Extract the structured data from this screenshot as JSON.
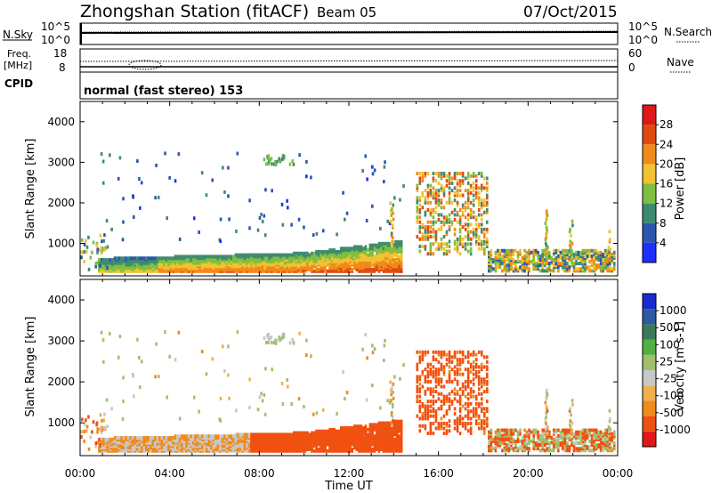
{
  "header": {
    "station": "Zhongshan Station (fitACF)",
    "beam": "Beam 05",
    "date": "07/Oct/2015"
  },
  "strip_labels": {
    "nsky": "N.Sky",
    "nsky_top": "10^5",
    "nsky_bottom": "10^0",
    "nsearch": "N.Search",
    "nsearch_top": "10^5",
    "nsearch_bottom": "10^0",
    "freq_line1": "Freq.",
    "freq_line2": "[MHz]",
    "freq_top": "18",
    "freq_bottom": "8",
    "nave": "Nave",
    "nave_top": "60",
    "nave_bottom": "0",
    "cpid": "CPID",
    "mode": "normal (fast stereo) 153"
  },
  "colors": {
    "power_scale": [
      "#1f2fff",
      "#2a56b0",
      "#3f8a6f",
      "#7fbf3f",
      "#f2c230",
      "#f08a1a",
      "#e04a10",
      "#e01818"
    ],
    "velocity_scale": [
      "#e01818",
      "#f05010",
      "#f08a1a",
      "#f0b050",
      "#c8c8c8",
      "#a0c070",
      "#50b040",
      "#3a7a5a",
      "#2a5aa0",
      "#1a2ad0"
    ]
  },
  "chart_data": [
    {
      "type": "heatmap",
      "name": "power",
      "ylabel": "Slant Range [km]",
      "yticks": [
        "1000",
        "2000",
        "3000",
        "4000"
      ],
      "ylim": [
        200,
        4500
      ],
      "xlim": [
        0,
        24
      ],
      "colorbar_label": "Power [dB]",
      "colorbar_ticks": [
        "4",
        "8",
        "12",
        "16",
        "20",
        "24",
        "28"
      ],
      "colorbar_range": [
        0,
        30
      ]
    },
    {
      "type": "heatmap",
      "name": "velocity",
      "ylabel": "Slant Range [km]",
      "yticks": [
        "1000",
        "2000",
        "3000",
        "4000"
      ],
      "ylim": [
        200,
        4500
      ],
      "xlim": [
        0,
        24
      ],
      "xlabel": "Time UT",
      "xticks": [
        "00:00",
        "04:00",
        "08:00",
        "12:00",
        "16:00",
        "20:00",
        "00:00"
      ],
      "colorbar_label": "Velocity [m s-1]",
      "colorbar_ticks": [
        "1000",
        "500",
        "100",
        "25",
        "-25",
        "-100",
        "-500",
        "-1000"
      ]
    }
  ]
}
